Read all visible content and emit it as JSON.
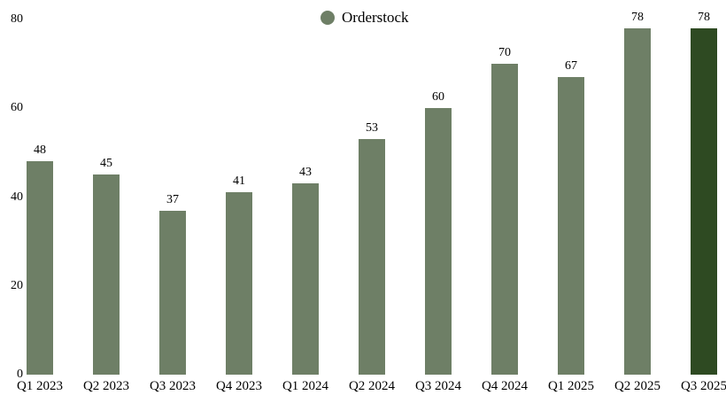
{
  "legend": {
    "label": "Orderstock"
  },
  "colors": {
    "bar": "#6E7F66",
    "highlight_bar": "#2E4A22",
    "background": "#FFFFFF",
    "text": "#000000"
  },
  "chart_data": {
    "type": "bar",
    "title": "",
    "categories": [
      "Q1 2023",
      "Q2 2023",
      "Q3 2023",
      "Q4 2023",
      "Q1 2024",
      "Q2 2024",
      "Q3 2024",
      "Q4 2024",
      "Q1 2025",
      "Q2 2025",
      "Q3 2025"
    ],
    "values": [
      48,
      45,
      37,
      41,
      43,
      53,
      60,
      70,
      67,
      78,
      78
    ],
    "series_name": "Orderstock",
    "value_labels_shown": true,
    "highlight_index": 10,
    "xlabel": "",
    "ylabel": "",
    "ylim": [
      0,
      80
    ],
    "yticks": [
      0,
      20,
      40,
      60,
      80
    ],
    "grid": false,
    "legend_position": "top-center"
  }
}
